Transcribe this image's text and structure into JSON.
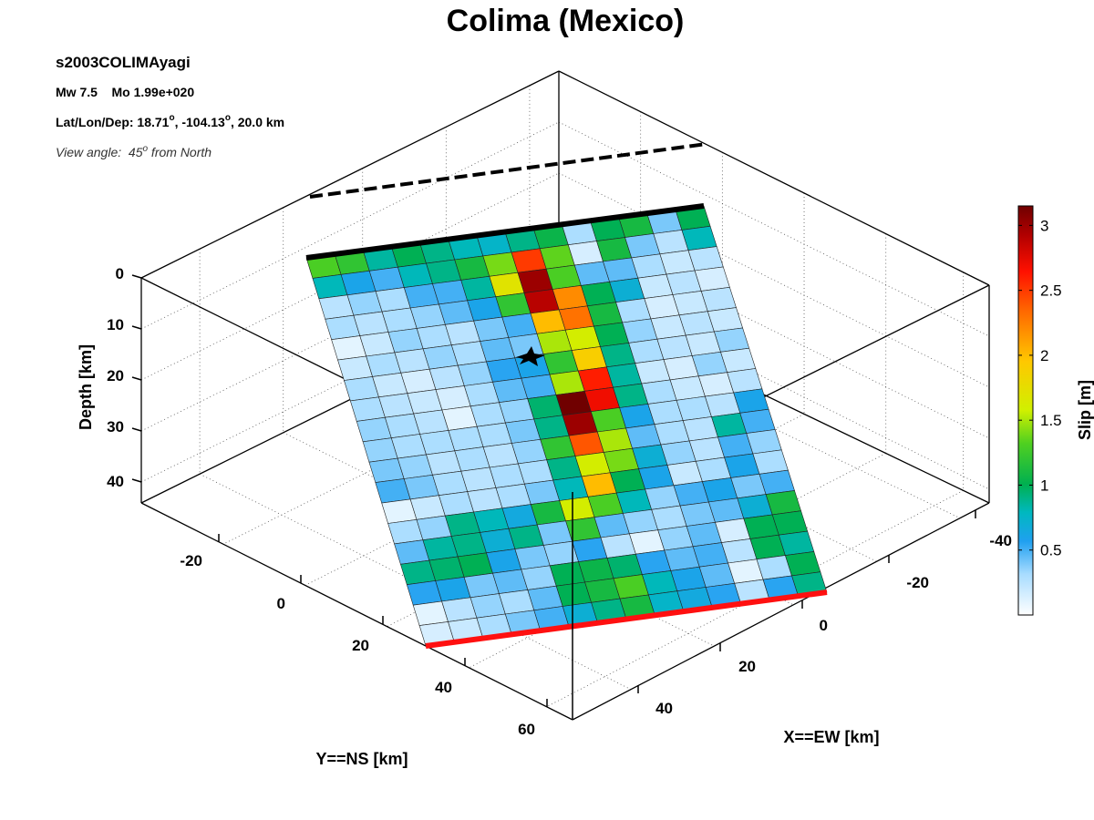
{
  "chart_data": {
    "type": "heatmap",
    "title": "Colima (Mexico)",
    "event_name": "s2003COLIMAyagi",
    "magnitude_line": "Mw 7.5    Mo 1.99e+020",
    "location_prefix": "Lat/Lon/Dep: 18.71",
    "lon_text": ", -104.13",
    "dep_text": ", 20.0 km",
    "deg_symbol": "o",
    "view_prefix": "View angle:  45",
    "view_suffix": " from North",
    "axes": {
      "depth": {
        "label": "Depth [km]",
        "ticks": [
          "0",
          "10",
          "20",
          "30",
          "40"
        ]
      },
      "ns": {
        "label": "Y==NS [km]",
        "ticks": [
          "-20",
          "0",
          "20",
          "40",
          "60"
        ]
      },
      "ew": {
        "label": "X==EW [km]",
        "ticks": [
          "-40",
          "-20",
          "0",
          "20",
          "40"
        ]
      }
    },
    "colorbar": {
      "label": "Slip [m]",
      "range": [
        0,
        3.15
      ],
      "ticks": [
        "0.5",
        "1",
        "1.5",
        "2",
        "2.5",
        "3"
      ]
    },
    "grid": true,
    "slip_grid_m": [
      [
        1.3,
        1.2,
        0.85,
        1.0,
        0.9,
        0.8,
        0.75,
        0.9,
        1.05,
        0.3,
        1.0,
        1.1,
        0.4,
        1.0
      ],
      [
        0.8,
        0.6,
        0.5,
        0.8,
        0.9,
        1.1,
        1.4,
        2.5,
        1.35,
        0.15,
        1.1,
        0.4,
        0.25,
        0.8
      ],
      [
        0.25,
        0.35,
        0.3,
        0.5,
        0.5,
        0.85,
        1.7,
        3.0,
        1.3,
        0.45,
        0.45,
        0.3,
        0.2,
        0.25
      ],
      [
        0.3,
        0.25,
        0.3,
        0.35,
        0.45,
        0.6,
        1.2,
        2.9,
        2.2,
        1.0,
        0.7,
        0.2,
        0.25,
        0.15
      ],
      [
        0.1,
        0.2,
        0.35,
        0.3,
        0.25,
        0.4,
        0.5,
        2.0,
        2.3,
        1.1,
        0.3,
        0.15,
        0.2,
        0.25
      ],
      [
        0.2,
        0.3,
        0.25,
        0.35,
        0.3,
        0.45,
        0.4,
        1.5,
        1.6,
        1.0,
        0.35,
        0.2,
        0.25,
        0.2
      ],
      [
        0.3,
        0.2,
        0.15,
        0.25,
        0.35,
        0.55,
        0.6,
        1.2,
        1.9,
        0.9,
        0.3,
        0.25,
        0.2,
        0.35
      ],
      [
        0.3,
        0.25,
        0.2,
        0.15,
        0.3,
        0.45,
        0.5,
        1.5,
        2.6,
        0.85,
        0.2,
        0.15,
        0.35,
        0.2
      ],
      [
        0.35,
        0.3,
        0.25,
        0.1,
        0.3,
        0.35,
        0.95,
        3.2,
        2.7,
        0.9,
        0.3,
        0.2,
        0.15,
        0.25
      ],
      [
        0.35,
        0.3,
        0.3,
        0.3,
        0.3,
        0.4,
        0.9,
        3.0,
        1.3,
        0.6,
        0.3,
        0.3,
        0.25,
        0.6
      ],
      [
        0.4,
        0.35,
        0.25,
        0.3,
        0.25,
        0.35,
        1.2,
        2.4,
        1.5,
        0.45,
        0.3,
        0.25,
        0.85,
        0.5
      ],
      [
        0.5,
        0.4,
        0.3,
        0.25,
        0.3,
        0.3,
        0.9,
        1.6,
        1.4,
        0.7,
        0.35,
        0.25,
        0.5,
        0.35
      ],
      [
        0.1,
        0.2,
        0.3,
        0.25,
        0.3,
        0.4,
        0.8,
        2.0,
        1.0,
        0.6,
        0.2,
        0.3,
        0.6,
        0.3
      ],
      [
        0.3,
        0.35,
        0.9,
        0.8,
        0.65,
        1.1,
        1.6,
        1.3,
        0.8,
        0.35,
        0.5,
        0.6,
        0.4,
        0.5
      ],
      [
        0.45,
        0.85,
        0.9,
        0.7,
        0.9,
        0.4,
        1.2,
        0.45,
        0.35,
        0.3,
        0.4,
        0.45,
        0.7,
        1.1
      ],
      [
        0.9,
        0.95,
        1.0,
        0.6,
        0.4,
        0.35,
        0.55,
        0.25,
        0.1,
        0.35,
        0.45,
        0.15,
        1.0,
        1.0
      ],
      [
        0.55,
        0.6,
        0.4,
        0.45,
        0.35,
        1.0,
        1.05,
        0.95,
        0.55,
        0.45,
        0.5,
        0.25,
        1.0,
        0.85
      ],
      [
        0.1,
        0.25,
        0.35,
        0.3,
        0.45,
        1.0,
        1.1,
        1.3,
        0.8,
        0.6,
        0.45,
        0.1,
        0.3,
        1.0
      ],
      [
        0.15,
        0.2,
        0.3,
        0.4,
        0.5,
        0.7,
        0.9,
        1.1,
        0.75,
        0.65,
        0.55,
        0.25,
        0.55,
        0.9
      ]
    ],
    "hypocenter": "star",
    "fault_top_color": "#000000",
    "fault_surface_color": "#ff1010"
  }
}
